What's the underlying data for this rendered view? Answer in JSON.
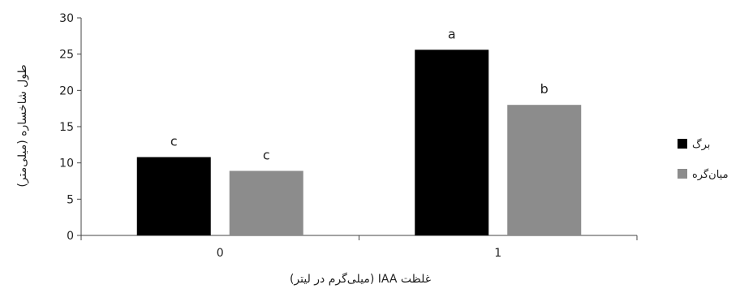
{
  "chart_data": {
    "type": "bar",
    "title": "",
    "xlabel": "غلظت IAA (میلی‌گرم در لیتر)",
    "ylabel": "طول شاخساره (میلی‌متر)",
    "categories": [
      "0",
      "1"
    ],
    "ylim": [
      0,
      30
    ],
    "yticks": [
      0,
      5,
      10,
      15,
      20,
      25,
      30
    ],
    "grid": false,
    "legend_position": "right",
    "series": [
      {
        "name": "برگ",
        "color": "#000000",
        "values": [
          10.8,
          25.6
        ],
        "labels": [
          "c",
          "a"
        ]
      },
      {
        "name": "میان‌گره",
        "color": "#8c8c8c",
        "values": [
          8.9,
          18.0
        ],
        "labels": [
          "c",
          "b"
        ]
      }
    ]
  }
}
